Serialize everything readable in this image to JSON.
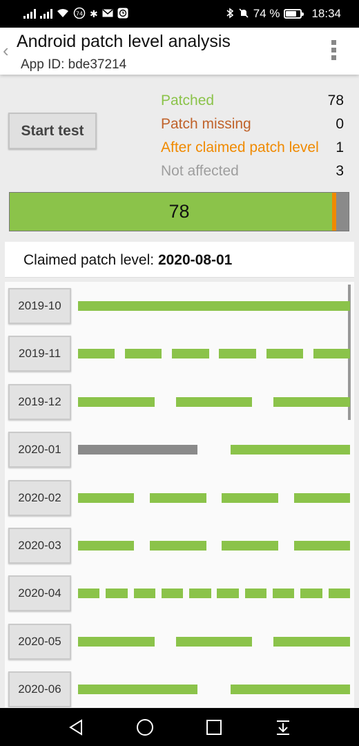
{
  "status_bar": {
    "time": "18:34",
    "battery_percent": "74 %",
    "notification_badge": "74",
    "icons": [
      "signal-icon",
      "signal-icon",
      "wifi-icon",
      "notification-badge-icon",
      "gear-icon",
      "mail-icon",
      "history-icon",
      "bluetooth-icon",
      "mute-icon",
      "battery-icon"
    ]
  },
  "app_bar": {
    "title": "Android patch level analysis",
    "subtitle": "App ID: bde37214"
  },
  "start_button": {
    "label": "Start test"
  },
  "summary": [
    {
      "label": "Patched",
      "value": "78",
      "color": "#8bc34a"
    },
    {
      "label": "Patch missing",
      "value": "0",
      "color": "#c0622a"
    },
    {
      "label": "After claimed patch level",
      "value": "1",
      "color": "#f08a00"
    },
    {
      "label": "Not affected",
      "value": "3",
      "color": "#9e9e9e"
    }
  ],
  "progress": {
    "label": "78",
    "total": 82,
    "segments": [
      {
        "name": "patched",
        "count": 78,
        "color": "#8bc34a"
      },
      {
        "name": "missing",
        "count": 0,
        "color": "#c0622a"
      },
      {
        "name": "after-claimed",
        "count": 1,
        "color": "#f08a00"
      },
      {
        "name": "not-affected",
        "count": 3,
        "color": "#8a8a8a"
      }
    ]
  },
  "claimed": {
    "label": "Claimed patch level: ",
    "value": "2020-08-01"
  },
  "months": [
    {
      "label": "2019-10",
      "tests": [
        "patched"
      ]
    },
    {
      "label": "2019-11",
      "tests": [
        "patched",
        "patched",
        "patched",
        "patched",
        "patched",
        "patched"
      ]
    },
    {
      "label": "2019-12",
      "tests": [
        "patched",
        "patched",
        "patched"
      ]
    },
    {
      "label": "2020-01",
      "tests": [
        "not-affected",
        "patched"
      ]
    },
    {
      "label": "2020-02",
      "tests": [
        "patched",
        "patched",
        "patched",
        "patched"
      ]
    },
    {
      "label": "2020-03",
      "tests": [
        "patched",
        "patched",
        "patched",
        "patched"
      ]
    },
    {
      "label": "2020-04",
      "tests": [
        "patched",
        "patched",
        "patched",
        "patched",
        "patched",
        "patched",
        "patched",
        "patched",
        "patched",
        "patched"
      ]
    },
    {
      "label": "2020-05",
      "tests": [
        "patched",
        "patched",
        "patched"
      ]
    },
    {
      "label": "2020-06",
      "tests": [
        "patched",
        "patched"
      ]
    }
  ],
  "colors": {
    "patched": "#8bc34a",
    "missing": "#c0622a",
    "after-claimed": "#f08a00",
    "not-affected": "#8a8a8a"
  }
}
